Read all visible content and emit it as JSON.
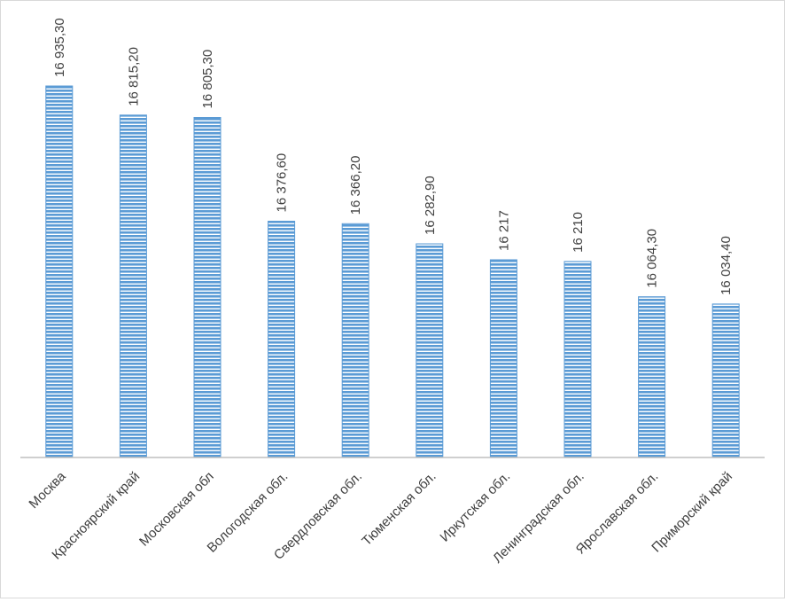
{
  "chart_data": {
    "type": "bar",
    "title": "",
    "xlabel": "",
    "ylabel": "",
    "categories": [
      "Москва",
      "Красноярский край",
      "Московская обл",
      "Вологодская обл.",
      "Свердловская обл.",
      "Тюменская обл.",
      "Иркутская обл.",
      "Ленинградская обл.",
      "Ярославская обл.",
      "Приморский край"
    ],
    "values": [
      16935.3,
      16815.2,
      16805.3,
      16376.6,
      16366.2,
      16282.9,
      16217,
      16210,
      16064.3,
      16034.4
    ],
    "data_labels": [
      "16 935,30",
      "16 815,20",
      "16 805,30",
      "16 376,60",
      "16 366,20",
      "16 282,90",
      "16 217",
      "16 210",
      "16 064,30",
      "16 034,40"
    ],
    "ylim": [
      15400,
      16935.3
    ],
    "y_axis_visible": false,
    "grid": false,
    "legend": "none",
    "colors": {
      "bar_fill": "#5b9bd5",
      "bar_stripe": "#ffffff",
      "axis_line": "#bfbfbf",
      "text": "#404040"
    }
  }
}
